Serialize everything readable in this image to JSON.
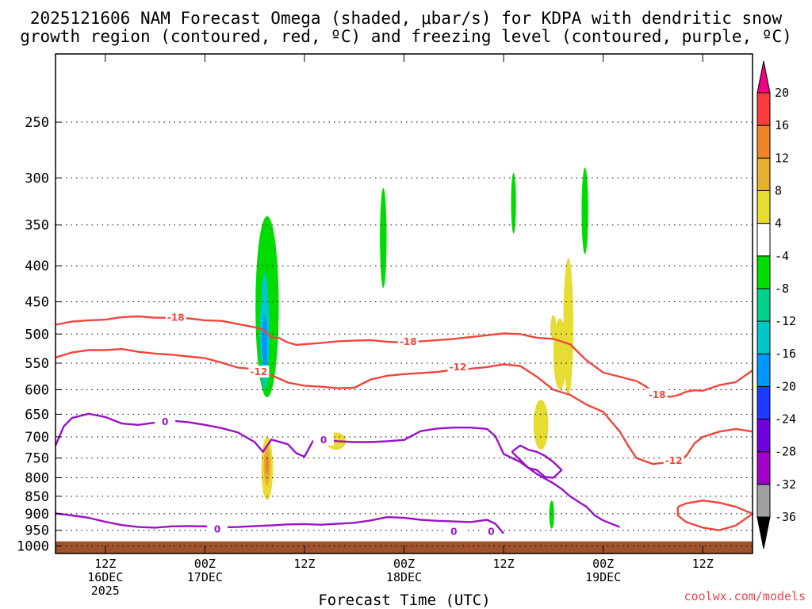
{
  "chart_data": {
    "type": "time-height",
    "title_line1": "2025121606 NAM Forecast Omega (shaded, μbar/s) for KDPA with dendritic snow",
    "title_line2": "growth region (contoured, red, ºC) and freezing level (contoured, purple, ºC)",
    "xlabel": "Forecast Time (UTC)",
    "ylabel": "",
    "credit": "coolwx.com/models",
    "x_range_hours": [
      0,
      84
    ],
    "y_range_mb": [
      1025,
      200
    ],
    "y_ticks": [
      250,
      300,
      350,
      400,
      450,
      500,
      550,
      600,
      650,
      700,
      750,
      800,
      850,
      900,
      950,
      1000
    ],
    "y_tick_labels": [
      "250",
      "300",
      "350",
      "400",
      "450",
      "500",
      "550",
      "600",
      "650",
      "700",
      "750",
      "800",
      "850",
      "900",
      "950",
      "1000"
    ],
    "x_ticks": [
      {
        "hour": 6,
        "line1": "12Z",
        "line2": "16DEC",
        "line3": "2025"
      },
      {
        "hour": 18,
        "line1": "00Z",
        "line2": "17DEC",
        "line3": ""
      },
      {
        "hour": 30,
        "line1": "12Z",
        "line2": "",
        "line3": ""
      },
      {
        "hour": 42,
        "line1": "00Z",
        "line2": "18DEC",
        "line3": ""
      },
      {
        "hour": 54,
        "line1": "12Z",
        "line2": "",
        "line3": ""
      },
      {
        "hour": 66,
        "line1": "00Z",
        "line2": "19DEC",
        "line3": ""
      },
      {
        "hour": 78,
        "line1": "12Z",
        "line2": "",
        "line3": ""
      }
    ],
    "colorbar": {
      "levels": [
        -36,
        -32,
        -28,
        -24,
        -20,
        -16,
        -12,
        -8,
        -4,
        4,
        8,
        12,
        16,
        20
      ],
      "labels": [
        "-36",
        "-32",
        "-28",
        "-24",
        "-20",
        "-16",
        "-12",
        "-8",
        "-4",
        "4",
        "8",
        "12",
        "16",
        "20"
      ],
      "colors": [
        "#000000",
        "#a0a0a0",
        "#a000c8",
        "#6e00dc",
        "#1e3cff",
        "#0096ff",
        "#00c8c8",
        "#00d28c",
        "#00dc00",
        "#ffffff",
        "#e6dc32",
        "#e6af2d",
        "#f08228",
        "#fa3c3c",
        "#f00082"
      ],
      "accent_bottom": "#000000",
      "accent_top": "#f00082"
    },
    "surface_color": "#a0522d",
    "contours": [
      {
        "name": "-18C",
        "label": "-18",
        "color": "#f0463c",
        "points": [
          [
            0,
            485
          ],
          [
            2,
            480
          ],
          [
            4,
            478
          ],
          [
            6,
            477
          ],
          [
            8,
            473
          ],
          [
            10,
            472
          ],
          [
            12,
            474
          ],
          [
            14,
            474
          ],
          [
            16,
            475
          ],
          [
            18,
            478
          ],
          [
            20,
            479
          ],
          [
            22,
            484
          ],
          [
            24,
            489
          ],
          [
            25,
            493
          ],
          [
            26,
            505
          ],
          [
            27,
            507
          ],
          [
            28,
            514
          ],
          [
            29,
            518
          ],
          [
            30,
            517
          ],
          [
            32,
            515
          ],
          [
            34,
            512
          ],
          [
            36,
            511
          ],
          [
            38,
            510
          ],
          [
            40,
            513
          ],
          [
            42,
            514
          ],
          [
            44,
            512
          ],
          [
            46,
            510
          ],
          [
            48,
            508
          ],
          [
            50,
            505
          ],
          [
            52,
            502
          ],
          [
            54,
            499
          ],
          [
            56,
            500
          ],
          [
            58,
            506
          ],
          [
            60,
            508
          ],
          [
            62,
            517
          ],
          [
            64,
            545
          ],
          [
            66,
            567
          ],
          [
            68,
            575
          ],
          [
            70,
            583
          ],
          [
            71,
            592
          ],
          [
            72,
            604
          ],
          [
            73,
            610
          ],
          [
            74,
            614
          ],
          [
            75,
            611
          ],
          [
            76,
            604
          ],
          [
            77,
            601
          ],
          [
            78,
            602
          ],
          [
            80,
            591
          ],
          [
            82,
            585
          ],
          [
            84,
            563
          ]
        ],
        "label_at": [
          [
            14.5,
            474
          ],
          [
            42.5,
            513
          ],
          [
            72.5,
            610
          ]
        ]
      },
      {
        "name": "-12C",
        "label": "-12",
        "color": "#f0463c",
        "points": [
          [
            0,
            540
          ],
          [
            2,
            531
          ],
          [
            4,
            527
          ],
          [
            6,
            527
          ],
          [
            8,
            525
          ],
          [
            10,
            530
          ],
          [
            12,
            533
          ],
          [
            14,
            535
          ],
          [
            16,
            538
          ],
          [
            18,
            541
          ],
          [
            20,
            549
          ],
          [
            22,
            558
          ],
          [
            24,
            561
          ],
          [
            26,
            572
          ],
          [
            28,
            586
          ],
          [
            30,
            592
          ],
          [
            32,
            594
          ],
          [
            34,
            597
          ],
          [
            36,
            596
          ],
          [
            38,
            580
          ],
          [
            40,
            573
          ],
          [
            42,
            570
          ],
          [
            44,
            568
          ],
          [
            46,
            566
          ],
          [
            48,
            562
          ],
          [
            50,
            560
          ],
          [
            52,
            557
          ],
          [
            54,
            552
          ],
          [
            56,
            555
          ],
          [
            58,
            575
          ],
          [
            60,
            600
          ],
          [
            62,
            610
          ],
          [
            64,
            630
          ],
          [
            66,
            645
          ],
          [
            68,
            688
          ],
          [
            69,
            720
          ],
          [
            70,
            750
          ],
          [
            72,
            765
          ],
          [
            74,
            760
          ],
          [
            75,
            755
          ],
          [
            76,
            745
          ],
          [
            77,
            715
          ],
          [
            78,
            700
          ],
          [
            80,
            688
          ],
          [
            82,
            682
          ],
          [
            84,
            688
          ]
        ],
        "label_at": [
          [
            24.5,
            566
          ],
          [
            48.5,
            557
          ],
          [
            74.5,
            757
          ]
        ]
      },
      {
        "name": "freezing-upper",
        "label": "0",
        "color": "#9a12c8",
        "points": [
          [
            0,
            720
          ],
          [
            1,
            676
          ],
          [
            2,
            658
          ],
          [
            4,
            649
          ],
          [
            6,
            656
          ],
          [
            8,
            670
          ],
          [
            10,
            673
          ],
          [
            12,
            668
          ],
          [
            14,
            664
          ],
          [
            16,
            667
          ],
          [
            18,
            673
          ],
          [
            20,
            680
          ],
          [
            22,
            690
          ],
          [
            24,
            712
          ],
          [
            25,
            735
          ],
          [
            26,
            706
          ],
          [
            28,
            717
          ],
          [
            29,
            738
          ],
          [
            30,
            747
          ],
          [
            31,
            710
          ],
          [
            32,
            705
          ],
          [
            34,
            710
          ],
          [
            36,
            712
          ],
          [
            38,
            712
          ],
          [
            40,
            710
          ],
          [
            42,
            707
          ],
          [
            44,
            687
          ],
          [
            46,
            681
          ],
          [
            48,
            679
          ],
          [
            50,
            679
          ],
          [
            52,
            682
          ],
          [
            53,
            698
          ],
          [
            54,
            740
          ],
          [
            56,
            760
          ],
          [
            58,
            790
          ],
          [
            60,
            815
          ],
          [
            61,
            830
          ],
          [
            62,
            850
          ],
          [
            63,
            865
          ],
          [
            64,
            880
          ],
          [
            65,
            905
          ],
          [
            66,
            920
          ],
          [
            68,
            940
          ]
        ],
        "label_at": [
          [
            13.2,
            666
          ],
          [
            32.3,
            707
          ],
          [
            52.5,
            955
          ]
        ]
      },
      {
        "name": "freezing-lower",
        "label": "0",
        "color": "#9a12c8",
        "points": [
          [
            0,
            899
          ],
          [
            2,
            905
          ],
          [
            4,
            912
          ],
          [
            6,
            924
          ],
          [
            8,
            934
          ],
          [
            10,
            940
          ],
          [
            12,
            942
          ],
          [
            14,
            938
          ],
          [
            16,
            937
          ],
          [
            18,
            938
          ],
          [
            20,
            941
          ],
          [
            22,
            940
          ],
          [
            24,
            937
          ],
          [
            26,
            935
          ],
          [
            28,
            932
          ],
          [
            30,
            931
          ],
          [
            32,
            933
          ],
          [
            34,
            930
          ],
          [
            36,
            927
          ],
          [
            38,
            920
          ],
          [
            40,
            910
          ],
          [
            42,
            912
          ],
          [
            44,
            918
          ],
          [
            46,
            921
          ],
          [
            48,
            923
          ],
          [
            50,
            925
          ],
          [
            52,
            918
          ],
          [
            53,
            930
          ],
          [
            54,
            960
          ]
        ],
        "label_at": [
          [
            19.5,
            947
          ],
          [
            48,
            955
          ]
        ]
      },
      {
        "name": "freezing-loop",
        "label": "",
        "color": "#9a12c8",
        "points": [
          [
            55,
            735
          ],
          [
            56,
            720
          ],
          [
            57,
            730
          ],
          [
            58,
            735
          ],
          [
            59,
            745
          ],
          [
            60,
            760
          ],
          [
            61,
            780
          ],
          [
            60,
            800
          ],
          [
            59,
            798
          ],
          [
            58,
            780
          ],
          [
            57,
            775
          ],
          [
            56,
            755
          ],
          [
            55,
            735
          ]
        ],
        "label_at": []
      },
      {
        "name": "-18C-closed",
        "label": "",
        "color": "#f0463c",
        "points": [
          [
            75,
            880
          ],
          [
            76,
            870
          ],
          [
            78,
            862
          ],
          [
            80,
            868
          ],
          [
            82,
            880
          ],
          [
            84,
            900
          ],
          [
            82,
            935
          ],
          [
            80,
            950
          ],
          [
            78,
            942
          ],
          [
            76,
            925
          ],
          [
            75,
            905
          ],
          [
            75,
            880
          ]
        ],
        "label_at": []
      }
    ],
    "shaded_features": [
      {
        "name": "omega-green-main",
        "level": -8,
        "color": "#00dc00",
        "hour_center": 25.5,
        "hour_width": 2.8,
        "p_top": 340,
        "p_bottom": 615
      },
      {
        "name": "omega-cyan-core",
        "level": -12,
        "color": "#00c8c8",
        "hour_center": 25.2,
        "hour_width": 1.1,
        "p_top": 410,
        "p_bottom": 600
      },
      {
        "name": "omega-blue-core",
        "level": -16,
        "color": "#0096ff",
        "hour_center": 25.2,
        "hour_width": 0.6,
        "p_top": 470,
        "p_bottom": 560
      },
      {
        "name": "omega-green-2",
        "level": -8,
        "color": "#00dc00",
        "hour_center": 39.5,
        "hour_width": 0.8,
        "p_top": 310,
        "p_bottom": 430
      },
      {
        "name": "omega-green-3",
        "level": -8,
        "color": "#00dc00",
        "hour_center": 55.2,
        "hour_width": 0.6,
        "p_top": 295,
        "p_bottom": 360
      },
      {
        "name": "omega-green-4",
        "level": -8,
        "color": "#00dc00",
        "hour_center": 63.8,
        "hour_width": 0.8,
        "p_top": 290,
        "p_bottom": 385
      },
      {
        "name": "omega-green-5",
        "level": -8,
        "color": "#00dc00",
        "hour_center": 59.8,
        "hour_width": 0.6,
        "p_top": 862,
        "p_bottom": 945
      },
      {
        "name": "omega-yellow-1",
        "level": 4,
        "color": "#e6dc32",
        "hour_center": 25.5,
        "hour_width": 1.4,
        "p_top": 700,
        "p_bottom": 860
      },
      {
        "name": "omega-orange-core",
        "level": 8,
        "color": "#e6af2d",
        "hour_center": 25.5,
        "hour_width": 0.8,
        "p_top": 720,
        "p_bottom": 820
      },
      {
        "name": "omega-red-core",
        "level": 12,
        "color": "#f08228",
        "hour_center": 25.5,
        "hour_width": 0.4,
        "p_top": 745,
        "p_bottom": 790
      },
      {
        "name": "omega-yellow-2",
        "level": 4,
        "color": "#e6dc32",
        "hour_center": 33.8,
        "hour_width": 2.4,
        "p_top": 690,
        "p_bottom": 730
      },
      {
        "name": "omega-yellow-3",
        "level": 4,
        "color": "#e6dc32",
        "hour_center": 60.8,
        "hour_width": 1.6,
        "p_top": 475,
        "p_bottom": 600
      },
      {
        "name": "omega-yellow-4",
        "level": 4,
        "color": "#e6dc32",
        "hour_center": 60.0,
        "hour_width": 0.7,
        "p_top": 470,
        "p_bottom": 510
      },
      {
        "name": "omega-yellow-5",
        "level": 4,
        "color": "#e6dc32",
        "hour_center": 58.5,
        "hour_width": 1.8,
        "p_top": 620,
        "p_bottom": 730
      },
      {
        "name": "omega-yellow-6",
        "level": 4,
        "color": "#e6dc32",
        "hour_center": 61.8,
        "hour_width": 1.2,
        "p_top": 390,
        "p_bottom": 610
      }
    ]
  }
}
